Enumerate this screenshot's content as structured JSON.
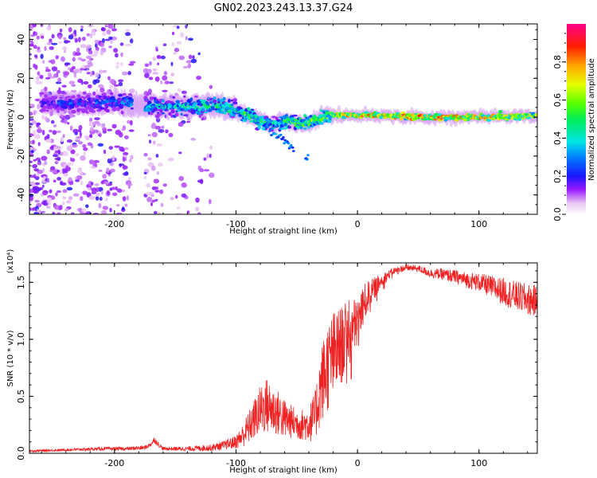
{
  "title": "GN02.2023.243.13.37.G24",
  "colors": {
    "snr_line": "#ee2222",
    "background": "#ffffff",
    "axis": "#000000"
  },
  "chart_data": [
    {
      "type": "heatmap",
      "name": "spectrogram",
      "xlabel": "Height of straight line (km)",
      "ylabel": "Frequency (Hz)",
      "xlim": [
        -270,
        148
      ],
      "ylim": [
        -50,
        48
      ],
      "xticks": [
        -200,
        -100,
        0,
        100
      ],
      "xtick_labels": [
        "-200",
        "-100",
        "0",
        "100"
      ],
      "yticks": [
        -40,
        -20,
        0,
        20,
        40
      ],
      "ytick_labels": [
        "-40",
        "-20",
        "0",
        "20",
        "40"
      ],
      "ridge": {
        "x": [
          -260,
          -240,
          -220,
          -200,
          -180,
          -160,
          -140,
          -120,
          -100,
          -90,
          -80,
          -70,
          -60,
          -50,
          -40,
          -30,
          -20,
          -10,
          0,
          20,
          50,
          80,
          110,
          148
        ],
        "frequency": [
          7,
          7,
          7,
          8,
          6,
          6,
          5,
          6,
          4,
          1,
          -2,
          -4,
          -2,
          -3,
          -3,
          0,
          1,
          1,
          1,
          1,
          0,
          0,
          0,
          1
        ],
        "amplitude": [
          0.25,
          0.3,
          0.3,
          0.35,
          0.4,
          0.45,
          0.5,
          0.55,
          0.55,
          0.6,
          0.55,
          0.5,
          0.55,
          0.6,
          0.65,
          0.7,
          0.75,
          0.8,
          0.85,
          0.85,
          0.9,
          0.85,
          0.8,
          0.7
        ]
      },
      "noise_extent_x": [
        -270,
        -120
      ],
      "colorbar": {
        "label": "Normalized spectral amplitude",
        "range": [
          0.0,
          1.0
        ],
        "ticks": [
          0.0,
          0.2,
          0.4,
          0.6,
          0.8
        ],
        "tick_labels": [
          "0.0",
          "0.2",
          "0.4",
          "0.6",
          "0.8"
        ]
      }
    },
    {
      "type": "line",
      "name": "snr",
      "xlabel": "Height of straight line (km)",
      "ylabel": "SNR (10 * v/v)",
      "yscale_note": "(x10⁴)",
      "xlim": [
        -270,
        148
      ],
      "ylim": [
        0.0,
        1.67
      ],
      "xticks": [
        -200,
        -100,
        0,
        100
      ],
      "xtick_labels": [
        "-200",
        "-100",
        "0",
        "100"
      ],
      "yticks": [
        0.0,
        0.5,
        1.0,
        1.5
      ],
      "ytick_labels": [
        "0.0",
        "0.5",
        "1.0",
        "1.5"
      ],
      "series": [
        {
          "name": "SNR",
          "x": [
            -270,
            -240,
            -210,
            -190,
            -175,
            -170,
            -167,
            -164,
            -160,
            -140,
            -120,
            -110,
            -100,
            -95,
            -90,
            -85,
            -80,
            -75,
            -70,
            -65,
            -60,
            -55,
            -50,
            -45,
            -40,
            -35,
            -30,
            -25,
            -20,
            -15,
            -10,
            -5,
            0,
            5,
            10,
            20,
            30,
            40,
            50,
            60,
            70,
            80,
            90,
            100,
            110,
            120,
            130,
            140,
            148
          ],
          "y": [
            0.02,
            0.03,
            0.04,
            0.04,
            0.05,
            0.08,
            0.12,
            0.08,
            0.04,
            0.04,
            0.05,
            0.07,
            0.1,
            0.15,
            0.22,
            0.3,
            0.38,
            0.42,
            0.38,
            0.35,
            0.3,
            0.28,
            0.26,
            0.25,
            0.26,
            0.32,
            0.6,
            0.75,
            0.85,
            0.92,
            1.0,
            1.08,
            1.15,
            1.3,
            1.4,
            1.52,
            1.6,
            1.63,
            1.62,
            1.58,
            1.57,
            1.55,
            1.52,
            1.5,
            1.46,
            1.42,
            1.38,
            1.35,
            1.33
          ],
          "noise_amplitude": [
            0.01,
            0.01,
            0.015,
            0.015,
            0.02,
            0.02,
            0.03,
            0.02,
            0.015,
            0.02,
            0.03,
            0.04,
            0.06,
            0.1,
            0.14,
            0.18,
            0.22,
            0.25,
            0.22,
            0.2,
            0.18,
            0.15,
            0.14,
            0.14,
            0.16,
            0.22,
            0.35,
            0.4,
            0.4,
            0.36,
            0.32,
            0.28,
            0.22,
            0.18,
            0.12,
            0.06,
            0.03,
            0.03,
            0.03,
            0.04,
            0.05,
            0.06,
            0.07,
            0.08,
            0.1,
            0.12,
            0.13,
            0.14,
            0.14
          ]
        }
      ]
    }
  ]
}
